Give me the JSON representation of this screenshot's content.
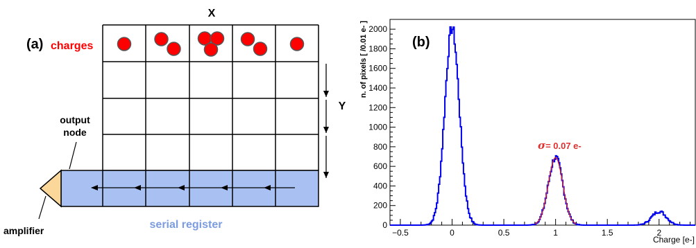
{
  "panel_a": {
    "panel_label": "(a)",
    "charges_label": "charges",
    "x_label": "X",
    "y_label": "Y",
    "output_node_label_1": "output",
    "output_node_label_2": "node",
    "amplifier_label": "amplifier",
    "serial_register_label": "serial register",
    "charges_per_column": [
      1,
      2,
      3,
      2,
      1
    ],
    "colors": {
      "charge_fill": "#ff0000",
      "charge_stroke": "#555555",
      "serial_register": "#a9c0f2",
      "amplifier": "#fbd79a",
      "charges_text": "#ff0000",
      "serial_register_text": "#7c9ce0"
    }
  },
  "panel_b": {
    "panel_label": "(b)",
    "sigma_symbol": "σ",
    "sigma_text": "= 0.07 e-",
    "chart_data": {
      "type": "histogram",
      "xlabel": "Charge [e-]",
      "ylabel": "n. of pixels [ /0.01 e- ]",
      "xlim": [
        -0.6,
        2.35
      ],
      "ylim": [
        0,
        2100
      ],
      "x_ticks": [
        -0.5,
        0,
        0.5,
        1,
        1.5,
        2
      ],
      "x_tick_labels": [
        "−0.5",
        "0",
        "0.5",
        "1",
        "1.5",
        "2"
      ],
      "y_ticks": [
        0,
        200,
        400,
        600,
        800,
        1000,
        1200,
        1400,
        1600,
        1800,
        2000
      ],
      "y_tick_labels": [
        "0",
        "200",
        "400",
        "600",
        "800",
        "1000",
        "1200",
        "1400",
        "1600",
        "1800",
        "2000"
      ],
      "bin_width": 0.01,
      "peaks": [
        {
          "charge": 0,
          "height": 2010,
          "sigma": 0.07
        },
        {
          "charge": 1,
          "height": 690,
          "sigma": 0.07
        },
        {
          "charge": 2,
          "height": 140,
          "sigma": 0.07
        }
      ],
      "series": [
        {
          "name": "",
          "color": "#0000ee"
        },
        {
          "name": "",
          "color": "#dd2222"
        }
      ],
      "annotation_color": "#e03030"
    }
  }
}
